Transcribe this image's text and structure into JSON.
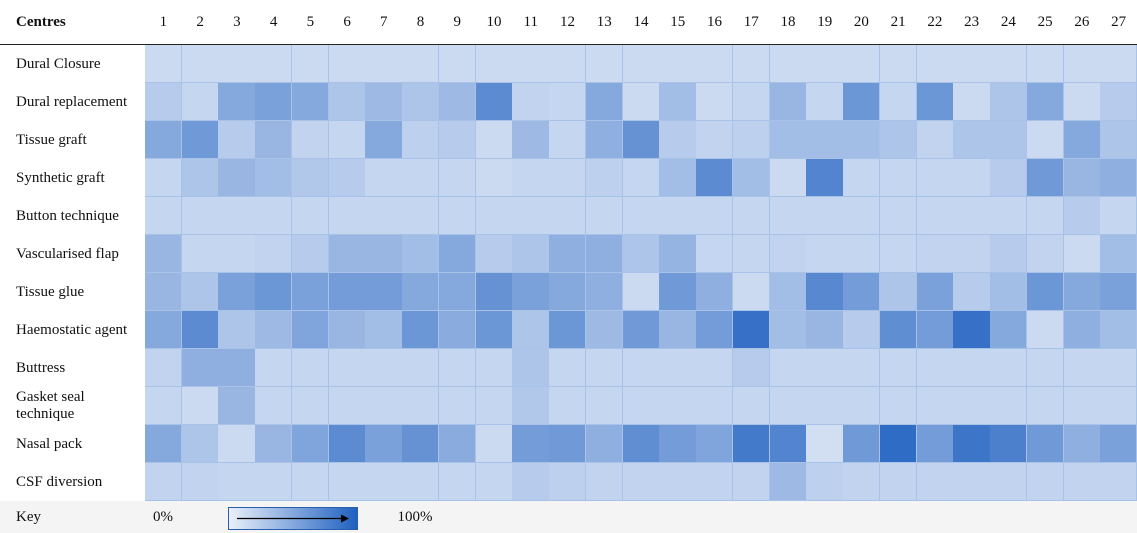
{
  "chart_data": {
    "type": "heatmap",
    "corner_label": "Centres",
    "x": [
      1,
      2,
      3,
      4,
      5,
      6,
      7,
      8,
      9,
      10,
      11,
      12,
      13,
      14,
      15,
      16,
      17,
      18,
      19,
      20,
      21,
      22,
      23,
      24,
      25,
      26,
      27
    ],
    "y": [
      "Dural Closure",
      "Dural replacement",
      "Tissue graft",
      "Synthetic graft",
      "Button technique",
      "Vascularised flap",
      "Tissue glue",
      "Haemostatic agent",
      "Buttress",
      "Gasket seal technique",
      "Nasal pack",
      "CSF diversion"
    ],
    "values": [
      [
        15,
        15,
        15,
        15,
        15,
        15,
        15,
        15,
        15,
        15,
        15,
        15,
        15,
        15,
        15,
        15,
        15,
        15,
        15,
        15,
        15,
        15,
        15,
        15,
        15,
        15,
        15
      ],
      [
        25,
        18,
        50,
        55,
        50,
        30,
        38,
        30,
        38,
        70,
        20,
        18,
        50,
        15,
        35,
        15,
        18,
        40,
        18,
        62,
        18,
        62,
        15,
        30,
        50,
        15,
        25
      ],
      [
        50,
        60,
        25,
        40,
        20,
        18,
        50,
        22,
        25,
        15,
        38,
        18,
        45,
        65,
        25,
        20,
        22,
        35,
        35,
        35,
        30,
        20,
        30,
        30,
        15,
        50,
        30
      ],
      [
        18,
        30,
        40,
        35,
        28,
        25,
        18,
        18,
        18,
        15,
        18,
        18,
        22,
        18,
        35,
        70,
        35,
        15,
        75,
        18,
        18,
        18,
        18,
        25,
        60,
        40,
        45
      ],
      [
        18,
        18,
        18,
        18,
        18,
        18,
        18,
        18,
        18,
        18,
        18,
        18,
        18,
        18,
        18,
        18,
        18,
        18,
        18,
        18,
        18,
        18,
        18,
        18,
        18,
        25,
        18
      ],
      [
        40,
        18,
        18,
        20,
        25,
        40,
        40,
        35,
        50,
        25,
        30,
        45,
        45,
        30,
        42,
        18,
        18,
        20,
        18,
        18,
        18,
        20,
        20,
        25,
        20,
        15,
        35
      ],
      [
        40,
        30,
        55,
        62,
        55,
        58,
        58,
        50,
        50,
        65,
        55,
        50,
        45,
        15,
        60,
        45,
        15,
        35,
        72,
        58,
        30,
        55,
        25,
        35,
        62,
        50,
        55
      ],
      [
        50,
        70,
        30,
        38,
        52,
        40,
        35,
        62,
        48,
        62,
        30,
        62,
        38,
        60,
        40,
        58,
        88,
        35,
        40,
        25,
        68,
        58,
        88,
        50,
        15,
        45,
        35
      ],
      [
        20,
        45,
        45,
        18,
        18,
        18,
        18,
        18,
        18,
        18,
        30,
        18,
        18,
        18,
        18,
        18,
        25,
        18,
        18,
        18,
        18,
        18,
        18,
        18,
        18,
        18,
        18
      ],
      [
        18,
        15,
        40,
        18,
        18,
        18,
        18,
        18,
        18,
        18,
        28,
        18,
        18,
        18,
        18,
        18,
        18,
        18,
        18,
        18,
        18,
        18,
        18,
        18,
        18,
        18,
        18
      ],
      [
        50,
        30,
        15,
        40,
        52,
        70,
        55,
        65,
        48,
        15,
        58,
        60,
        45,
        68,
        58,
        52,
        82,
        75,
        12,
        60,
        92,
        58,
        85,
        78,
        60,
        45,
        55
      ],
      [
        20,
        20,
        18,
        18,
        18,
        18,
        18,
        18,
        18,
        18,
        25,
        22,
        20,
        20,
        20,
        20,
        20,
        38,
        22,
        20,
        20,
        20,
        20,
        20,
        20,
        20,
        20
      ]
    ],
    "zlim": [
      0,
      100
    ],
    "colors": [
      "#eaf0fa",
      "#1f60c0"
    ],
    "key": {
      "label": "Key",
      "ticks": [
        {
          "value": 0,
          "label": "0%"
        },
        {
          "value": 100,
          "label": "100%"
        }
      ]
    }
  }
}
